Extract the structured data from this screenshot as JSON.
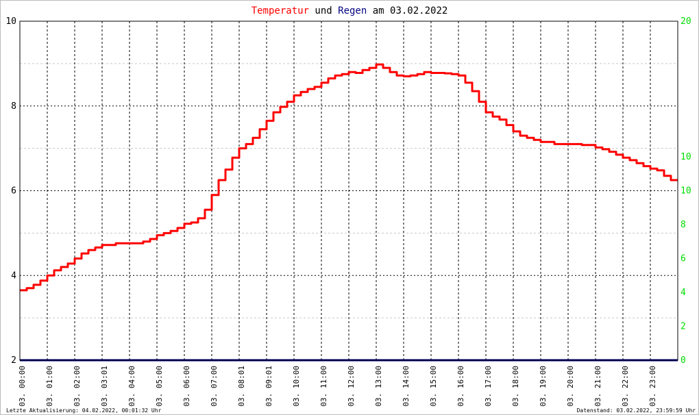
{
  "title": {
    "part1": "Temperatur",
    "part2": " und ",
    "part3": "Regen",
    "part4": " am 03.02.2022",
    "color_temp": "#ff0000",
    "color_rain": "#000080"
  },
  "footer": {
    "left": "Letzte Aktualisierung: 04.02.2022, 00:01:32 Uhr",
    "right": "Datenstand: 03.02.2022, 23:59:59 Uhr"
  },
  "chart_data": {
    "type": "line",
    "y_left": {
      "min": 2,
      "max": 10,
      "ticks": [
        "2",
        "4",
        "6",
        "8",
        "10"
      ]
    },
    "y_right": {
      "min": 0,
      "max": 20,
      "ticks": [
        "0",
        "2",
        "4",
        "6",
        "8",
        "10",
        "10",
        "20"
      ],
      "color": "#00dd00"
    },
    "x_range": [
      0,
      24
    ],
    "x_ticks": [
      "03. 00:00",
      "03. 01:00",
      "03. 02:00",
      "03. 03:01",
      "03. 04:00",
      "03. 05:00",
      "03. 06:00",
      "03. 07:00",
      "03. 08:01",
      "03. 09:01",
      "03. 10:00",
      "03. 11:00",
      "03. 12:00",
      "03. 13:00",
      "03. 14:00",
      "03. 15:00",
      "03. 16:00",
      "03. 17:00",
      "03. 18:00",
      "03. 19:00",
      "03. 20:00",
      "03. 21:00",
      "03. 22:00",
      "03. 23:00"
    ],
    "grid": true,
    "series": [
      {
        "color": "#ff0000",
        "axis": "left",
        "x": [
          0,
          0.25,
          0.5,
          0.75,
          1.0,
          1.25,
          1.5,
          1.75,
          2.0,
          2.25,
          2.5,
          2.75,
          3.0,
          3.5,
          4.0,
          4.25,
          4.5,
          4.75,
          5.0,
          5.25,
          5.5,
          5.75,
          6.0,
          6.25,
          6.5,
          6.75,
          7.0,
          7.25,
          7.5,
          7.75,
          8.0,
          8.25,
          8.5,
          8.75,
          9.0,
          9.25,
          9.5,
          9.75,
          10.0,
          10.25,
          10.5,
          10.75,
          11.0,
          11.25,
          11.5,
          11.75,
          12.0,
          12.25,
          12.5,
          12.75,
          13.0,
          13.25,
          13.5,
          13.75,
          14.0,
          14.25,
          14.5,
          14.75,
          15.0,
          15.25,
          15.5,
          15.75,
          16.0,
          16.25,
          16.5,
          16.75,
          17.0,
          17.25,
          17.5,
          17.75,
          18.0,
          18.25,
          18.5,
          18.75,
          19.0,
          19.5,
          20.0,
          20.5,
          21.0,
          21.25,
          21.5,
          21.75,
          22.0,
          22.25,
          22.5,
          22.75,
          23.0,
          23.25,
          23.5,
          23.75,
          24.0
        ],
        "y": [
          3.65,
          3.7,
          3.78,
          3.88,
          4.0,
          4.12,
          4.2,
          4.28,
          4.4,
          4.52,
          4.6,
          4.66,
          4.72,
          4.76,
          4.76,
          4.76,
          4.8,
          4.86,
          4.95,
          5.0,
          5.05,
          5.12,
          5.22,
          5.25,
          5.35,
          5.55,
          5.9,
          6.25,
          6.5,
          6.78,
          7.0,
          7.1,
          7.25,
          7.45,
          7.65,
          7.85,
          7.98,
          8.1,
          8.25,
          8.33,
          8.4,
          8.45,
          8.55,
          8.65,
          8.72,
          8.75,
          8.8,
          8.78,
          8.85,
          8.9,
          8.98,
          8.9,
          8.8,
          8.72,
          8.7,
          8.72,
          8.75,
          8.8,
          8.78,
          8.78,
          8.77,
          8.75,
          8.72,
          8.55,
          8.35,
          8.1,
          7.85,
          7.75,
          7.68,
          7.55,
          7.4,
          7.3,
          7.25,
          7.2,
          7.15,
          7.1,
          7.1,
          7.08,
          7.02,
          6.98,
          6.92,
          6.85,
          6.78,
          6.72,
          6.65,
          6.58,
          6.52,
          6.48,
          6.35,
          6.25,
          6.25
        ]
      },
      {
        "color": "#000080",
        "axis": "right",
        "x": [
          0,
          24
        ],
        "y": [
          0,
          0
        ]
      }
    ]
  }
}
